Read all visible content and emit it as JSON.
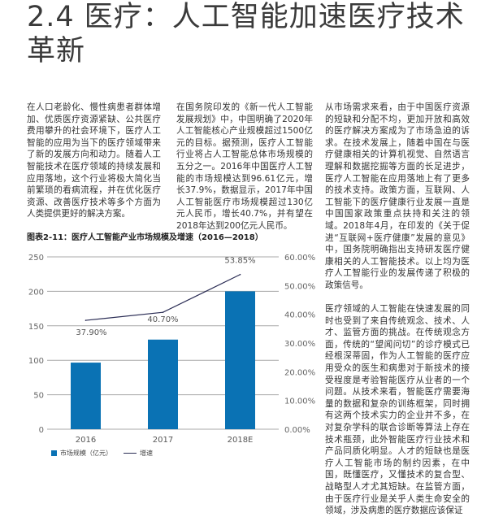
{
  "heading": "2.4 医疗：人工智能加速医疗技术革新",
  "columns": {
    "col1": [
      "在人口老龄化、慢性病患者群体增加、优质医疗资源紧缺、公共医疗费用攀升的社会环境下，医疗人工智能的应用为当下的医疗领域带来了新的发展方向和动力。随着人工智能技术在医疗领域的持续发展和应用落地，这个行业将极大简化当前繁琐的看病流程，并在优化医疗资源、改善医疗技术等多个方面为人类提供更好的解决方案。"
    ],
    "col2": [
      "在国务院印发的《新一代人工智能发展规划》中，中国明确了2020年人工智能核心产业规模超过1500亿元的目标。据预测，医疗人工智能行业将占人工智能总体市场规模的五分之一。2016年中国医疗人工智能的市场规模达到96.61亿元，增长37.9%，数据显示，2017年中国人工智能医疗市场规模超过130亿元人民币，增长40.7%，并有望在2018年达到200亿元人民币。"
    ],
    "col3": [
      "从市场需求来看，由于中国医疗资源的短缺和分配不均，更加开放和高效的医疗解决方案成为了市场急迫的诉求。在技术发展上，随着中国在与医疗健康相关的计算机视觉、自然语言理解和数据挖掘等方面的长足进步，医疗人工智能在应用落地上有了更多的技术支持。政策方面，互联网、人工智能下的医疗健康行业发展一直是中国国家政策重点扶持和关注的领域。2018年4月，在印发的《关于促进“互联网+医疗健康”发展的意见》中，国务院明确指出支持研发医疗健康相关的人工智能技术。以上均为医疗人工智能行业的发展传递了积极的政策信号。",
      "医疗领域的人工智能在快速发展的同时也受到了来自传统观念、技术、人才、监管方面的挑战。在传统观念方面，传统的“望闻问切”的诊疗模式已经根深蒂固，作为人工智能的医疗应用受众的医生和病患对于新技术的接受程度是考验智能医疗从业者的一个问题。从技术来看，智能医疗需要海量的数据和复杂的训练框架，同时拥有这两个技术实力的企业并不多，在对复杂学科的联合诊断等算法上存在技术瓶颈，此外智能医疗行业技术和产品同质化明显。人才的短缺也是医疗人工智能市场的制约因素，在中国，既懂医疗，又懂技术的复合型、战略型人才尤其短缺。在监管方面，由于医疗行业是关乎人类生命安全的领域，涉及病患的医疗数据应该保证"
    ]
  },
  "chart_data": {
    "type": "bar+line",
    "title": "图表2-11：医疗人工智能产业市场规模及增速（2016—2018）",
    "categories": [
      "2016",
      "2017",
      "2018E"
    ],
    "series": [
      {
        "name": "市场规模（亿元）",
        "type": "bar",
        "axis": "left",
        "values": [
          96.61,
          130,
          200
        ],
        "color": "#0a72b4"
      },
      {
        "name": "增速",
        "type": "line",
        "axis": "right",
        "values": [
          37.9,
          40.7,
          53.85
        ],
        "labels": [
          "37.90%",
          "40.70%",
          "53.85%"
        ],
        "color": "#2b2d55"
      }
    ],
    "left_axis": {
      "ylim": [
        0,
        250
      ],
      "ticks": [
        "0",
        "50",
        "100",
        "150",
        "200",
        "250"
      ]
    },
    "right_axis": {
      "ylim": [
        0,
        60
      ],
      "ticks": [
        "0.00%",
        "10.00%",
        "20.00%",
        "30.00%",
        "40.00%",
        "50.00%",
        "60.00%"
      ]
    },
    "grid": true,
    "legend": "bottom-left"
  }
}
